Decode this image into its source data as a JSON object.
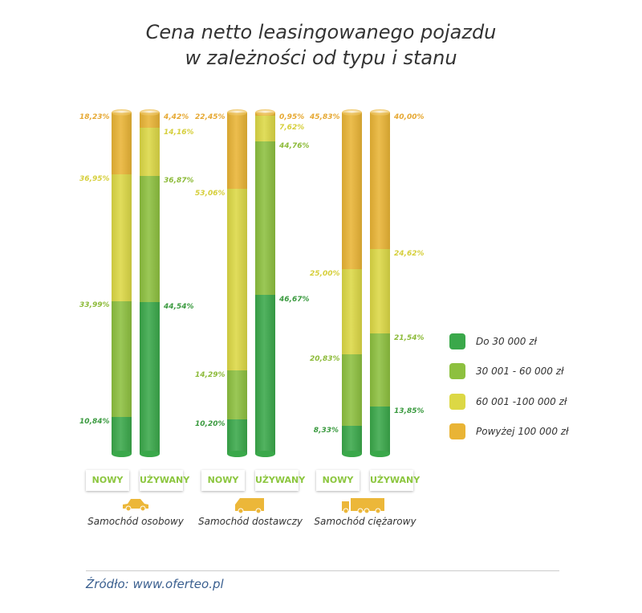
{
  "chart_data": {
    "type": "bar",
    "stacked": true,
    "title_lines": [
      "Cena netto leasingowanego pojazdu",
      "w zależności od typu i stanu"
    ],
    "ylim": [
      0,
      100
    ],
    "groups": [
      "Samochód osobowy",
      "Samochód dostawczy",
      "Samochód ciężarowy"
    ],
    "subcategories": [
      "NOWY",
      "UŻYWANY"
    ],
    "series": [
      {
        "name": "Do 30 000 zł",
        "color": "#3aa84a",
        "label_color": "#3a9a3f",
        "values": [
          [
            10.84,
            44.54
          ],
          [
            10.2,
            46.67
          ],
          [
            8.33,
            13.85
          ]
        ],
        "labels": [
          [
            "10,84%",
            "44,54%"
          ],
          [
            "10,20%",
            "46,67%"
          ],
          [
            "8,33%",
            "13,85%"
          ]
        ]
      },
      {
        "name": "30 001 - 60 000 zł",
        "color": "#8dc03f",
        "label_color": "#8dbb3a",
        "values": [
          [
            33.99,
            36.87
          ],
          [
            14.29,
            44.76
          ],
          [
            20.83,
            21.54
          ]
        ],
        "labels": [
          [
            "33,99%",
            "36,87%"
          ],
          [
            "14,29%",
            "44,76%"
          ],
          [
            "20,83%",
            "21,54%"
          ]
        ]
      },
      {
        "name": "60 001 -100 000 zł",
        "color": "#dcd845",
        "label_color": "#d6cf3c",
        "values": [
          [
            36.95,
            14.16
          ],
          [
            53.06,
            7.62
          ],
          [
            25.0,
            24.62
          ]
        ],
        "labels": [
          [
            "36,95%",
            "14,16%"
          ],
          [
            "53,06%",
            "7,62%"
          ],
          [
            "25,00%",
            "24,62%"
          ]
        ]
      },
      {
        "name": "Powyżej 100 000 zł",
        "color": "#e9b435",
        "label_color": "#e6a832",
        "values": [
          [
            18.23,
            4.42
          ],
          [
            22.45,
            0.95
          ],
          [
            45.83,
            40.0
          ]
        ],
        "labels": [
          [
            "18,23%",
            "4,42%"
          ],
          [
            "22,45%",
            "0,95%"
          ],
          [
            "45,83%",
            "40,00%"
          ]
        ]
      }
    ],
    "legend_position": "right"
  },
  "icons": [
    "car-icon",
    "van-icon",
    "truck-icon"
  ],
  "source": "Źródło: www.oferteo.pl"
}
